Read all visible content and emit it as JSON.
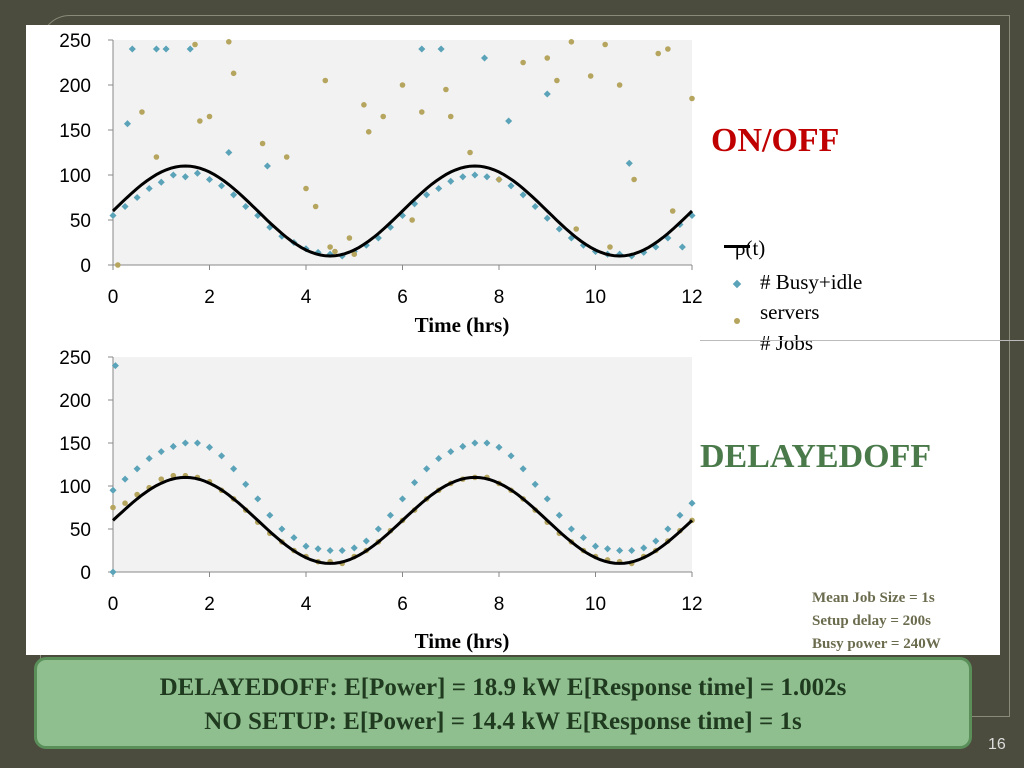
{
  "slide": {
    "title_onoff": "ON/OFF",
    "title_delayedoff": "DELAYEDOFF",
    "page_number": "16",
    "params": [
      "Mean Job Size = 1s",
      "Setup delay = 200s",
      "Busy power = 240W"
    ],
    "summary": [
      "DELAYEDOFF:   E[Power] = 18.9 kW    E[Response time] = 1.002s",
      "NO SETUP:   E[Power] = 14.4 kW    E[Response time] = 1s"
    ],
    "legend": {
      "rho": "ρ(t)",
      "busy": "# Busy+idle",
      "busy2": "servers",
      "jobs": "# Jobs"
    }
  },
  "colors": {
    "rho": "#000000",
    "busy": "#5ba3b8",
    "jobs": "#b5a55e",
    "onoff": "#c00000",
    "delayed": "#4a7a4a"
  },
  "chart_data": [
    {
      "type": "scatter",
      "title": "ON/OFF",
      "xlabel": "Time (hrs)",
      "ylabel": "",
      "xlim": [
        0,
        12
      ],
      "ylim": [
        0,
        250
      ],
      "xticks": [
        "0",
        "2",
        "4",
        "6",
        "8",
        "10",
        "12"
      ],
      "yticks": [
        "0",
        "50",
        "100",
        "150",
        "200",
        "250"
      ],
      "rho": {
        "name": "ρ(t)",
        "formula": "60+50*sin(2*pi*t/6)"
      },
      "series": [
        {
          "name": "# Busy+idle servers",
          "marker": "diamond",
          "points": [
            [
              0,
              55
            ],
            [
              0.5,
              75
            ],
            [
              1,
              92
            ],
            [
              1.5,
              98
            ],
            [
              2,
              95
            ],
            [
              2.5,
              78
            ],
            [
              3,
              55
            ],
            [
              3.5,
              32
            ],
            [
              4,
              18
            ],
            [
              4.5,
              12
            ],
            [
              5,
              15
            ],
            [
              5.5,
              30
            ],
            [
              6,
              55
            ],
            [
              6.5,
              78
            ],
            [
              7,
              93
            ],
            [
              7.5,
              100
            ],
            [
              8,
              95
            ],
            [
              8.5,
              78
            ],
            [
              9,
              52
            ],
            [
              9.5,
              30
            ],
            [
              10,
              15
            ],
            [
              10.5,
              12
            ],
            [
              11,
              14
            ],
            [
              11.5,
              30
            ],
            [
              12,
              55
            ],
            [
              0.3,
              157
            ],
            [
              0.4,
              240
            ],
            [
              0.9,
              240
            ],
            [
              1.1,
              240
            ],
            [
              1.6,
              240
            ],
            [
              2.4,
              125
            ],
            [
              3.2,
              110
            ],
            [
              6.4,
              240
            ],
            [
              6.8,
              240
            ],
            [
              7.7,
              230
            ],
            [
              8.2,
              160
            ],
            [
              9.0,
              190
            ],
            [
              10.7,
              113
            ],
            [
              11.8,
              20
            ],
            [
              0.25,
              65
            ],
            [
              0.75,
              85
            ],
            [
              1.25,
              100
            ],
            [
              1.75,
              102
            ],
            [
              2.25,
              88
            ],
            [
              2.75,
              65
            ],
            [
              3.25,
              42
            ],
            [
              3.75,
              25
            ],
            [
              4.25,
              14
            ],
            [
              4.75,
              10
            ],
            [
              5.25,
              22
            ],
            [
              5.75,
              42
            ],
            [
              6.25,
              68
            ],
            [
              6.75,
              85
            ],
            [
              7.25,
              98
            ],
            [
              7.75,
              98
            ],
            [
              8.25,
              88
            ],
            [
              8.75,
              65
            ],
            [
              9.25,
              40
            ],
            [
              9.75,
              22
            ],
            [
              10.25,
              12
            ],
            [
              10.75,
              10
            ],
            [
              11.25,
              20
            ],
            [
              11.75,
              45
            ]
          ]
        },
        {
          "name": "# Jobs",
          "marker": "circle",
          "points": [
            [
              0.1,
              0
            ],
            [
              0.6,
              170
            ],
            [
              0.9,
              120
            ],
            [
              1.7,
              245
            ],
            [
              1.8,
              160
            ],
            [
              2.0,
              165
            ],
            [
              2.4,
              248
            ],
            [
              2.5,
              213
            ],
            [
              3.1,
              135
            ],
            [
              3.6,
              120
            ],
            [
              4.0,
              85
            ],
            [
              4.2,
              65
            ],
            [
              4.4,
              205
            ],
            [
              4.5,
              20
            ],
            [
              4.9,
              30
            ],
            [
              5.2,
              178
            ],
            [
              5.3,
              148
            ],
            [
              5.6,
              165
            ],
            [
              6.0,
              200
            ],
            [
              6.4,
              170
            ],
            [
              6.9,
              195
            ],
            [
              7.0,
              165
            ],
            [
              7.4,
              125
            ],
            [
              8.0,
              95
            ],
            [
              8.5,
              225
            ],
            [
              9.0,
              230
            ],
            [
              9.2,
              205
            ],
            [
              9.5,
              248
            ],
            [
              9.9,
              210
            ],
            [
              10.2,
              245
            ],
            [
              10.5,
              200
            ],
            [
              10.8,
              95
            ],
            [
              11.3,
              235
            ],
            [
              11.5,
              240
            ],
            [
              11.6,
              60
            ],
            [
              12.0,
              185
            ],
            [
              4.6,
              15
            ],
            [
              5.0,
              12
            ],
            [
              6.2,
              50
            ],
            [
              9.6,
              40
            ],
            [
              10.3,
              20
            ]
          ]
        }
      ]
    },
    {
      "type": "scatter",
      "title": "DELAYEDOFF",
      "xlabel": "Time (hrs)",
      "ylabel": "",
      "xlim": [
        0,
        12
      ],
      "ylim": [
        0,
        250
      ],
      "xticks": [
        "0",
        "2",
        "4",
        "6",
        "8",
        "10",
        "12"
      ],
      "yticks": [
        "0",
        "50",
        "100",
        "150",
        "200",
        "250"
      ],
      "rho": {
        "name": "ρ(t)",
        "formula": "60+50*sin(2*pi*t/6)"
      },
      "series": [
        {
          "name": "# Busy+idle servers",
          "marker": "diamond",
          "points": [
            [
              0,
              0
            ],
            [
              0.05,
              240
            ],
            [
              0,
              95
            ],
            [
              0.5,
              120
            ],
            [
              1,
              140
            ],
            [
              1.5,
              150
            ],
            [
              2,
              145
            ],
            [
              2.5,
              120
            ],
            [
              3,
              85
            ],
            [
              3.5,
              50
            ],
            [
              4,
              30
            ],
            [
              4.5,
              25
            ],
            [
              5,
              28
            ],
            [
              5.5,
              50
            ],
            [
              6,
              85
            ],
            [
              6.5,
              120
            ],
            [
              7,
              140
            ],
            [
              7.5,
              150
            ],
            [
              8,
              145
            ],
            [
              8.5,
              120
            ],
            [
              9,
              85
            ],
            [
              9.5,
              50
            ],
            [
              10,
              30
            ],
            [
              10.5,
              25
            ],
            [
              11,
              28
            ],
            [
              11.5,
              50
            ],
            [
              12,
              80
            ],
            [
              0.25,
              108
            ],
            [
              0.75,
              132
            ],
            [
              1.25,
              146
            ],
            [
              1.75,
              150
            ],
            [
              2.25,
              135
            ],
            [
              2.75,
              102
            ],
            [
              3.25,
              66
            ],
            [
              3.75,
              40
            ],
            [
              4.25,
              27
            ],
            [
              4.75,
              25
            ],
            [
              5.25,
              36
            ],
            [
              5.75,
              66
            ],
            [
              6.25,
              104
            ],
            [
              6.75,
              132
            ],
            [
              7.25,
              146
            ],
            [
              7.75,
              150
            ],
            [
              8.25,
              135
            ],
            [
              8.75,
              102
            ],
            [
              9.25,
              66
            ],
            [
              9.75,
              40
            ],
            [
              10.25,
              27
            ],
            [
              10.75,
              25
            ],
            [
              11.25,
              36
            ],
            [
              11.75,
              66
            ]
          ]
        },
        {
          "name": "# Jobs",
          "marker": "circle",
          "points": [
            [
              0,
              75
            ],
            [
              0.5,
              90
            ],
            [
              1,
              108
            ],
            [
              1.5,
              112
            ],
            [
              2,
              105
            ],
            [
              2.5,
              85
            ],
            [
              3,
              58
            ],
            [
              3.5,
              35
            ],
            [
              4,
              18
            ],
            [
              4.5,
              12
            ],
            [
              5,
              18
            ],
            [
              5.5,
              35
            ],
            [
              6,
              60
            ],
            [
              6.5,
              85
            ],
            [
              7,
              103
            ],
            [
              7.5,
              110
            ],
            [
              8,
              103
            ],
            [
              8.5,
              85
            ],
            [
              9,
              58
            ],
            [
              9.5,
              35
            ],
            [
              10,
              18
            ],
            [
              10.5,
              12
            ],
            [
              11,
              18
            ],
            [
              11.5,
              36
            ],
            [
              12,
              60
            ],
            [
              0.25,
              80
            ],
            [
              0.75,
              98
            ],
            [
              1.25,
              112
            ],
            [
              1.75,
              110
            ],
            [
              2.25,
              95
            ],
            [
              2.75,
              72
            ],
            [
              3.25,
              45
            ],
            [
              3.75,
              25
            ],
            [
              4.25,
              12
            ],
            [
              4.75,
              10
            ],
            [
              5.25,
              25
            ],
            [
              5.75,
              48
            ],
            [
              6.25,
              72
            ],
            [
              6.75,
              95
            ],
            [
              7.25,
              108
            ],
            [
              7.75,
              110
            ],
            [
              8.25,
              95
            ],
            [
              8.75,
              72
            ],
            [
              9.25,
              45
            ],
            [
              9.75,
              25
            ],
            [
              10.25,
              14
            ],
            [
              10.75,
              10
            ],
            [
              11.25,
              25
            ],
            [
              11.75,
              48
            ]
          ]
        }
      ]
    }
  ]
}
